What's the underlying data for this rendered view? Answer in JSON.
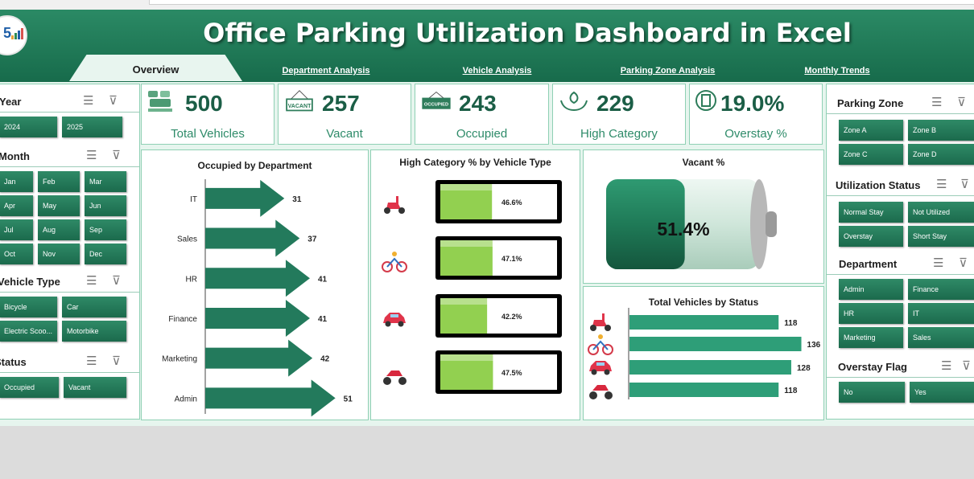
{
  "header": {
    "title": "Office Parking Utilization Dashboard in Excel"
  },
  "nav": {
    "tabs": [
      {
        "label": "Overview",
        "active": true
      },
      {
        "label": "Department Analysis"
      },
      {
        "label": "Vehicle  Analysis"
      },
      {
        "label": "Parking Zone Analysis"
      },
      {
        "label": "Monthly Trends"
      }
    ]
  },
  "left_slicers": {
    "year": {
      "title": "Year",
      "items": [
        "2024",
        "2025"
      ]
    },
    "month": {
      "title": "Month",
      "items": [
        "Jan",
        "Feb",
        "Mar",
        "Apr",
        "May",
        "Jun",
        "Jul",
        "Aug",
        "Sep",
        "Oct",
        "Nov",
        "Dec"
      ]
    },
    "vehicle_type": {
      "title": "Vehicle Type",
      "items": [
        "Bicycle",
        "Car",
        "Electric Scoo...",
        "Motorbike"
      ]
    },
    "status": {
      "title": "Status",
      "items": [
        "Occupied",
        "Vacant"
      ]
    }
  },
  "kpis": [
    {
      "value": "500",
      "label": "Total Vehicles",
      "icon": "vehicles-icon"
    },
    {
      "value": "257",
      "label": "Vacant",
      "icon": "vacant-sign-icon",
      "icon_text": "VACANT"
    },
    {
      "value": "243",
      "label": "Occupied",
      "icon": "occupied-sign-icon",
      "icon_text": "OCCUPIED"
    },
    {
      "value": "229",
      "label": "High Category",
      "icon": "hands-leaf-icon"
    },
    {
      "value": "19.0%",
      "label": "Overstay  %",
      "icon": "document-icon"
    }
  ],
  "right_slicers": {
    "parking_zone": {
      "title": "Parking Zone",
      "items": [
        "Zone A",
        "Zone B",
        "Zone C",
        "Zone D"
      ]
    },
    "utilization_status": {
      "title": "Utilization Status",
      "items": [
        "Normal Stay",
        "Not Utilized",
        "Overstay",
        "Short Stay"
      ]
    },
    "department": {
      "title": "Department",
      "items": [
        "Admin",
        "Finance",
        "HR",
        "IT",
        "Marketing",
        "Sales"
      ]
    },
    "overstay_flag": {
      "title": "Overstay Flag",
      "items": [
        "No",
        "Yes"
      ]
    }
  },
  "colors": {
    "brand_green": "#1f7a57",
    "light_green_bg": "#e6f5ee",
    "bar_fill_green": "#92d050",
    "arrow_green": "#237a5c"
  },
  "chart_data": [
    {
      "type": "bar",
      "title": "Occupied by Department",
      "categories": [
        "IT",
        "Sales",
        "HR",
        "Finance",
        "Marketing",
        "Admin"
      ],
      "values": [
        31,
        37,
        41,
        41,
        42,
        51
      ]
    },
    {
      "type": "bar",
      "title": "High Category % by Vehicle Type",
      "categories": [
        "scooter-icon",
        "bicycle-icon",
        "car-icon",
        "motorbike-icon"
      ],
      "values": [
        46.6,
        47.1,
        42.2,
        47.5
      ],
      "value_labels": [
        "46.6%",
        "47.1%",
        "42.2%",
        "47.5%"
      ]
    },
    {
      "type": "bar",
      "title": "Vacant %",
      "values": [
        51.4
      ],
      "value_labels": [
        "51.4%"
      ]
    },
    {
      "type": "bar",
      "title": "Total Vehicles by Status",
      "categories": [
        "scooter-icon",
        "bicycle-icon",
        "car-icon",
        "motorbike-icon"
      ],
      "values": [
        118,
        136,
        128,
        118
      ]
    }
  ]
}
